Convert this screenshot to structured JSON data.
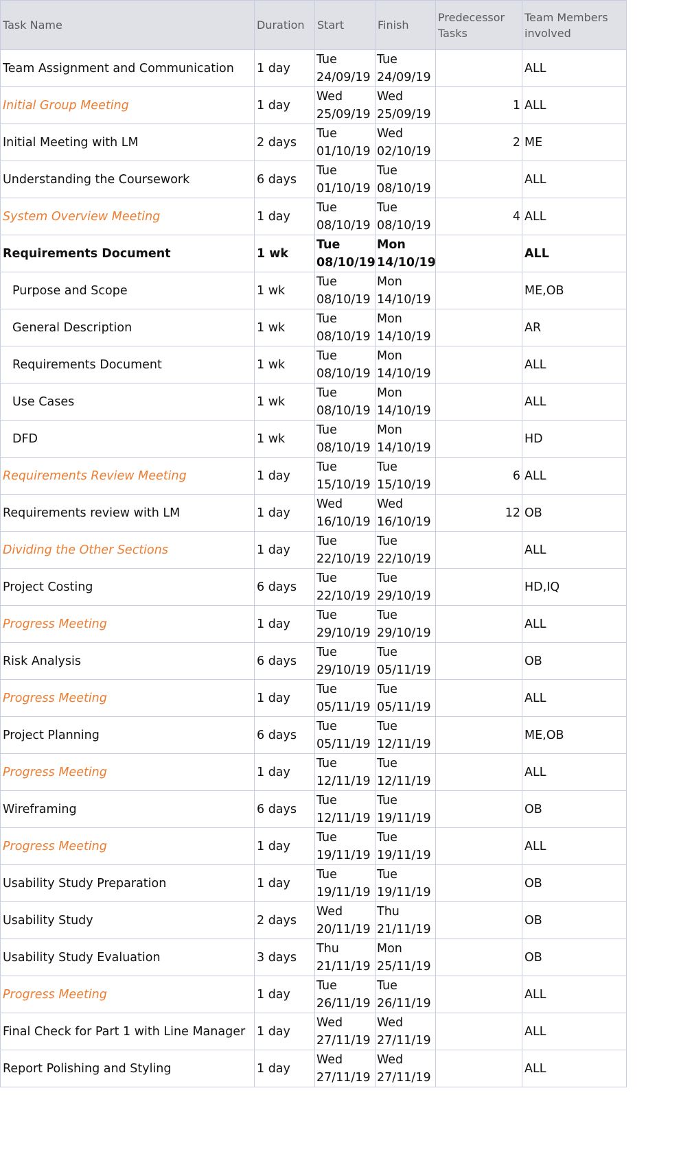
{
  "headers": {
    "task_name": "Task Name",
    "duration": "Duration",
    "start": "Start",
    "finish": "Finish",
    "predecessors": "Predecessor Tasks",
    "team": "Team Members involved"
  },
  "colors": {
    "milestone": "#ed7d31",
    "header_bg": "#dfe1e6",
    "grid": "#c6cde0"
  },
  "tasks": [
    {
      "name": "Team Assignment and Communication",
      "duration": "1 day",
      "start_day": "Tue",
      "start_date": "24/09/19",
      "finish_day": "Tue",
      "finish_date": "24/09/19",
      "pred": "",
      "team": "ALL",
      "style": "normal",
      "indent": false
    },
    {
      "name": "Initial Group Meeting",
      "duration": "1 day",
      "start_day": "Wed",
      "start_date": "25/09/19",
      "finish_day": "Wed",
      "finish_date": "25/09/19",
      "pred": "1",
      "team": "ALL",
      "style": "milestone",
      "indent": false
    },
    {
      "name": "Initial Meeting with LM",
      "duration": "2 days",
      "start_day": "Tue",
      "start_date": "01/10/19",
      "finish_day": "Wed",
      "finish_date": "02/10/19",
      "pred": "2",
      "team": "ME",
      "style": "normal",
      "indent": false
    },
    {
      "name": "Understanding the Coursework",
      "duration": "6 days",
      "start_day": "Tue",
      "start_date": "01/10/19",
      "finish_day": "Tue",
      "finish_date": "08/10/19",
      "pred": "",
      "team": "ALL",
      "style": "normal",
      "indent": false
    },
    {
      "name": "System Overview Meeting",
      "duration": "1 day",
      "start_day": "Tue",
      "start_date": "08/10/19",
      "finish_day": "Tue",
      "finish_date": "08/10/19",
      "pred": "4",
      "team": "ALL",
      "style": "milestone",
      "indent": false
    },
    {
      "name": "Requirements Document",
      "duration": "1 wk",
      "start_day": "Tue",
      "start_date": "08/10/19",
      "finish_day": "Mon",
      "finish_date": "14/10/19",
      "pred": "",
      "team": "ALL",
      "style": "summary",
      "indent": false
    },
    {
      "name": "Purpose and Scope",
      "duration": "1 wk",
      "start_day": "Tue",
      "start_date": "08/10/19",
      "finish_day": "Mon",
      "finish_date": "14/10/19",
      "pred": "",
      "team": "ME,OB",
      "style": "normal",
      "indent": true
    },
    {
      "name": "General Description",
      "duration": "1 wk",
      "start_day": "Tue",
      "start_date": "08/10/19",
      "finish_day": "Mon",
      "finish_date": "14/10/19",
      "pred": "",
      "team": "AR",
      "style": "normal",
      "indent": true
    },
    {
      "name": "Requirements Document",
      "duration": "1 wk",
      "start_day": "Tue",
      "start_date": "08/10/19",
      "finish_day": "Mon",
      "finish_date": "14/10/19",
      "pred": "",
      "team": "ALL",
      "style": "normal",
      "indent": true
    },
    {
      "name": "Use Cases",
      "duration": "1 wk",
      "start_day": "Tue",
      "start_date": "08/10/19",
      "finish_day": "Mon",
      "finish_date": "14/10/19",
      "pred": "",
      "team": "ALL",
      "style": "normal",
      "indent": true
    },
    {
      "name": "DFD",
      "duration": "1 wk",
      "start_day": "Tue",
      "start_date": "08/10/19",
      "finish_day": "Mon",
      "finish_date": "14/10/19",
      "pred": "",
      "team": "HD",
      "style": "normal",
      "indent": true
    },
    {
      "name": "Requirements Review Meeting",
      "duration": "1 day",
      "start_day": "Tue",
      "start_date": "15/10/19",
      "finish_day": "Tue",
      "finish_date": "15/10/19",
      "pred": "6",
      "team": "ALL",
      "style": "milestone",
      "indent": false
    },
    {
      "name": "Requirements review with LM",
      "duration": "1 day",
      "start_day": "Wed",
      "start_date": "16/10/19",
      "finish_day": "Wed",
      "finish_date": "16/10/19",
      "pred": "12",
      "team": "OB",
      "style": "normal",
      "indent": false
    },
    {
      "name": "Dividing the Other Sections",
      "duration": "1 day",
      "start_day": "Tue",
      "start_date": "22/10/19",
      "finish_day": "Tue",
      "finish_date": "22/10/19",
      "pred": "",
      "team": "ALL",
      "style": "milestone",
      "indent": false
    },
    {
      "name": "Project Costing",
      "duration": "6 days",
      "start_day": "Tue",
      "start_date": "22/10/19",
      "finish_day": "Tue",
      "finish_date": "29/10/19",
      "pred": "",
      "team": "HD,IQ",
      "style": "normal",
      "indent": false
    },
    {
      "name": "Progress Meeting",
      "duration": "1 day",
      "start_day": "Tue",
      "start_date": "29/10/19",
      "finish_day": "Tue",
      "finish_date": "29/10/19",
      "pred": "",
      "team": "ALL",
      "style": "milestone",
      "indent": false
    },
    {
      "name": "Risk Analysis",
      "duration": "6 days",
      "start_day": "Tue",
      "start_date": "29/10/19",
      "finish_day": "Tue",
      "finish_date": "05/11/19",
      "pred": "",
      "team": "OB",
      "style": "normal",
      "indent": false
    },
    {
      "name": "Progress Meeting",
      "duration": "1 day",
      "start_day": "Tue",
      "start_date": "05/11/19",
      "finish_day": "Tue",
      "finish_date": "05/11/19",
      "pred": "",
      "team": "ALL",
      "style": "milestone",
      "indent": false
    },
    {
      "name": "Project Planning",
      "duration": "6 days",
      "start_day": "Tue",
      "start_date": "05/11/19",
      "finish_day": "Tue",
      "finish_date": "12/11/19",
      "pred": "",
      "team": "ME,OB",
      "style": "normal",
      "indent": false
    },
    {
      "name": "Progress Meeting",
      "duration": "1 day",
      "start_day": "Tue",
      "start_date": "12/11/19",
      "finish_day": "Tue",
      "finish_date": "12/11/19",
      "pred": "",
      "team": "ALL",
      "style": "milestone",
      "indent": false
    },
    {
      "name": "Wireframing",
      "duration": "6 days",
      "start_day": "Tue",
      "start_date": "12/11/19",
      "finish_day": "Tue",
      "finish_date": "19/11/19",
      "pred": "",
      "team": "OB",
      "style": "normal",
      "indent": false
    },
    {
      "name": "Progress Meeting",
      "duration": "1 day",
      "start_day": "Tue",
      "start_date": "19/11/19",
      "finish_day": "Tue",
      "finish_date": "19/11/19",
      "pred": "",
      "team": "ALL",
      "style": "milestone",
      "indent": false
    },
    {
      "name": "Usability Study Preparation",
      "duration": "1 day",
      "start_day": "Tue",
      "start_date": "19/11/19",
      "finish_day": "Tue",
      "finish_date": "19/11/19",
      "pred": "",
      "team": "OB",
      "style": "normal",
      "indent": false
    },
    {
      "name": "Usability Study",
      "duration": "2 days",
      "start_day": "Wed",
      "start_date": "20/11/19",
      "finish_day": "Thu",
      "finish_date": "21/11/19",
      "pred": "",
      "team": "OB",
      "style": "normal",
      "indent": false
    },
    {
      "name": "Usability Study Evaluation",
      "duration": "3 days",
      "start_day": "Thu",
      "start_date": "21/11/19",
      "finish_day": "Mon",
      "finish_date": "25/11/19",
      "pred": "",
      "team": "OB",
      "style": "normal",
      "indent": false
    },
    {
      "name": "Progress Meeting",
      "duration": "1 day",
      "start_day": "Tue",
      "start_date": "26/11/19",
      "finish_day": "Tue",
      "finish_date": "26/11/19",
      "pred": "",
      "team": "ALL",
      "style": "milestone",
      "indent": false
    },
    {
      "name": "Final Check for Part 1 with Line Manager",
      "duration": "1 day",
      "start_day": "Wed",
      "start_date": "27/11/19",
      "finish_day": "Wed",
      "finish_date": "27/11/19",
      "pred": "",
      "team": "ALL",
      "style": "normal",
      "indent": false
    },
    {
      "name": "Report Polishing and Styling",
      "duration": "1 day",
      "start_day": "Wed",
      "start_date": "27/11/19",
      "finish_day": "Wed",
      "finish_date": "27/11/19",
      "pred": "",
      "team": "ALL",
      "style": "normal",
      "indent": false
    }
  ]
}
